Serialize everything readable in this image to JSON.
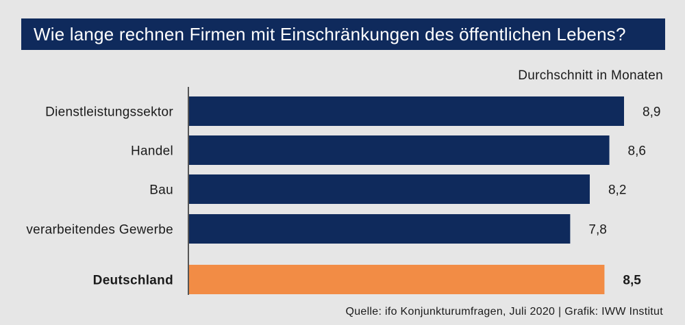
{
  "chart_data": {
    "type": "bar",
    "orientation": "horizontal",
    "title": "Wie lange rechnen Firmen mit Einschränkungen des öffentlichen Lebens?",
    "unit_label": "Durchschnitt in Monaten",
    "source": "Quelle: ifo Konjunkturumfragen, Juli 2020 | Grafik: IWW Institut",
    "categories": [
      "Dienstleistungssektor",
      "Handel",
      "Bau",
      "verarbeitendes Gewerbe",
      "Deutschland"
    ],
    "values": [
      8.9,
      8.6,
      8.2,
      7.8,
      8.5
    ],
    "value_labels": [
      "8,9",
      "8,6",
      "8,2",
      "7,8",
      "8,5"
    ],
    "highlight": [
      false,
      false,
      false,
      false,
      true
    ],
    "xlim": [
      0,
      8.9
    ]
  },
  "colors": {
    "bar": "#0f2a5c",
    "highlight_bar": "#f28c45",
    "axis": "#555555"
  }
}
